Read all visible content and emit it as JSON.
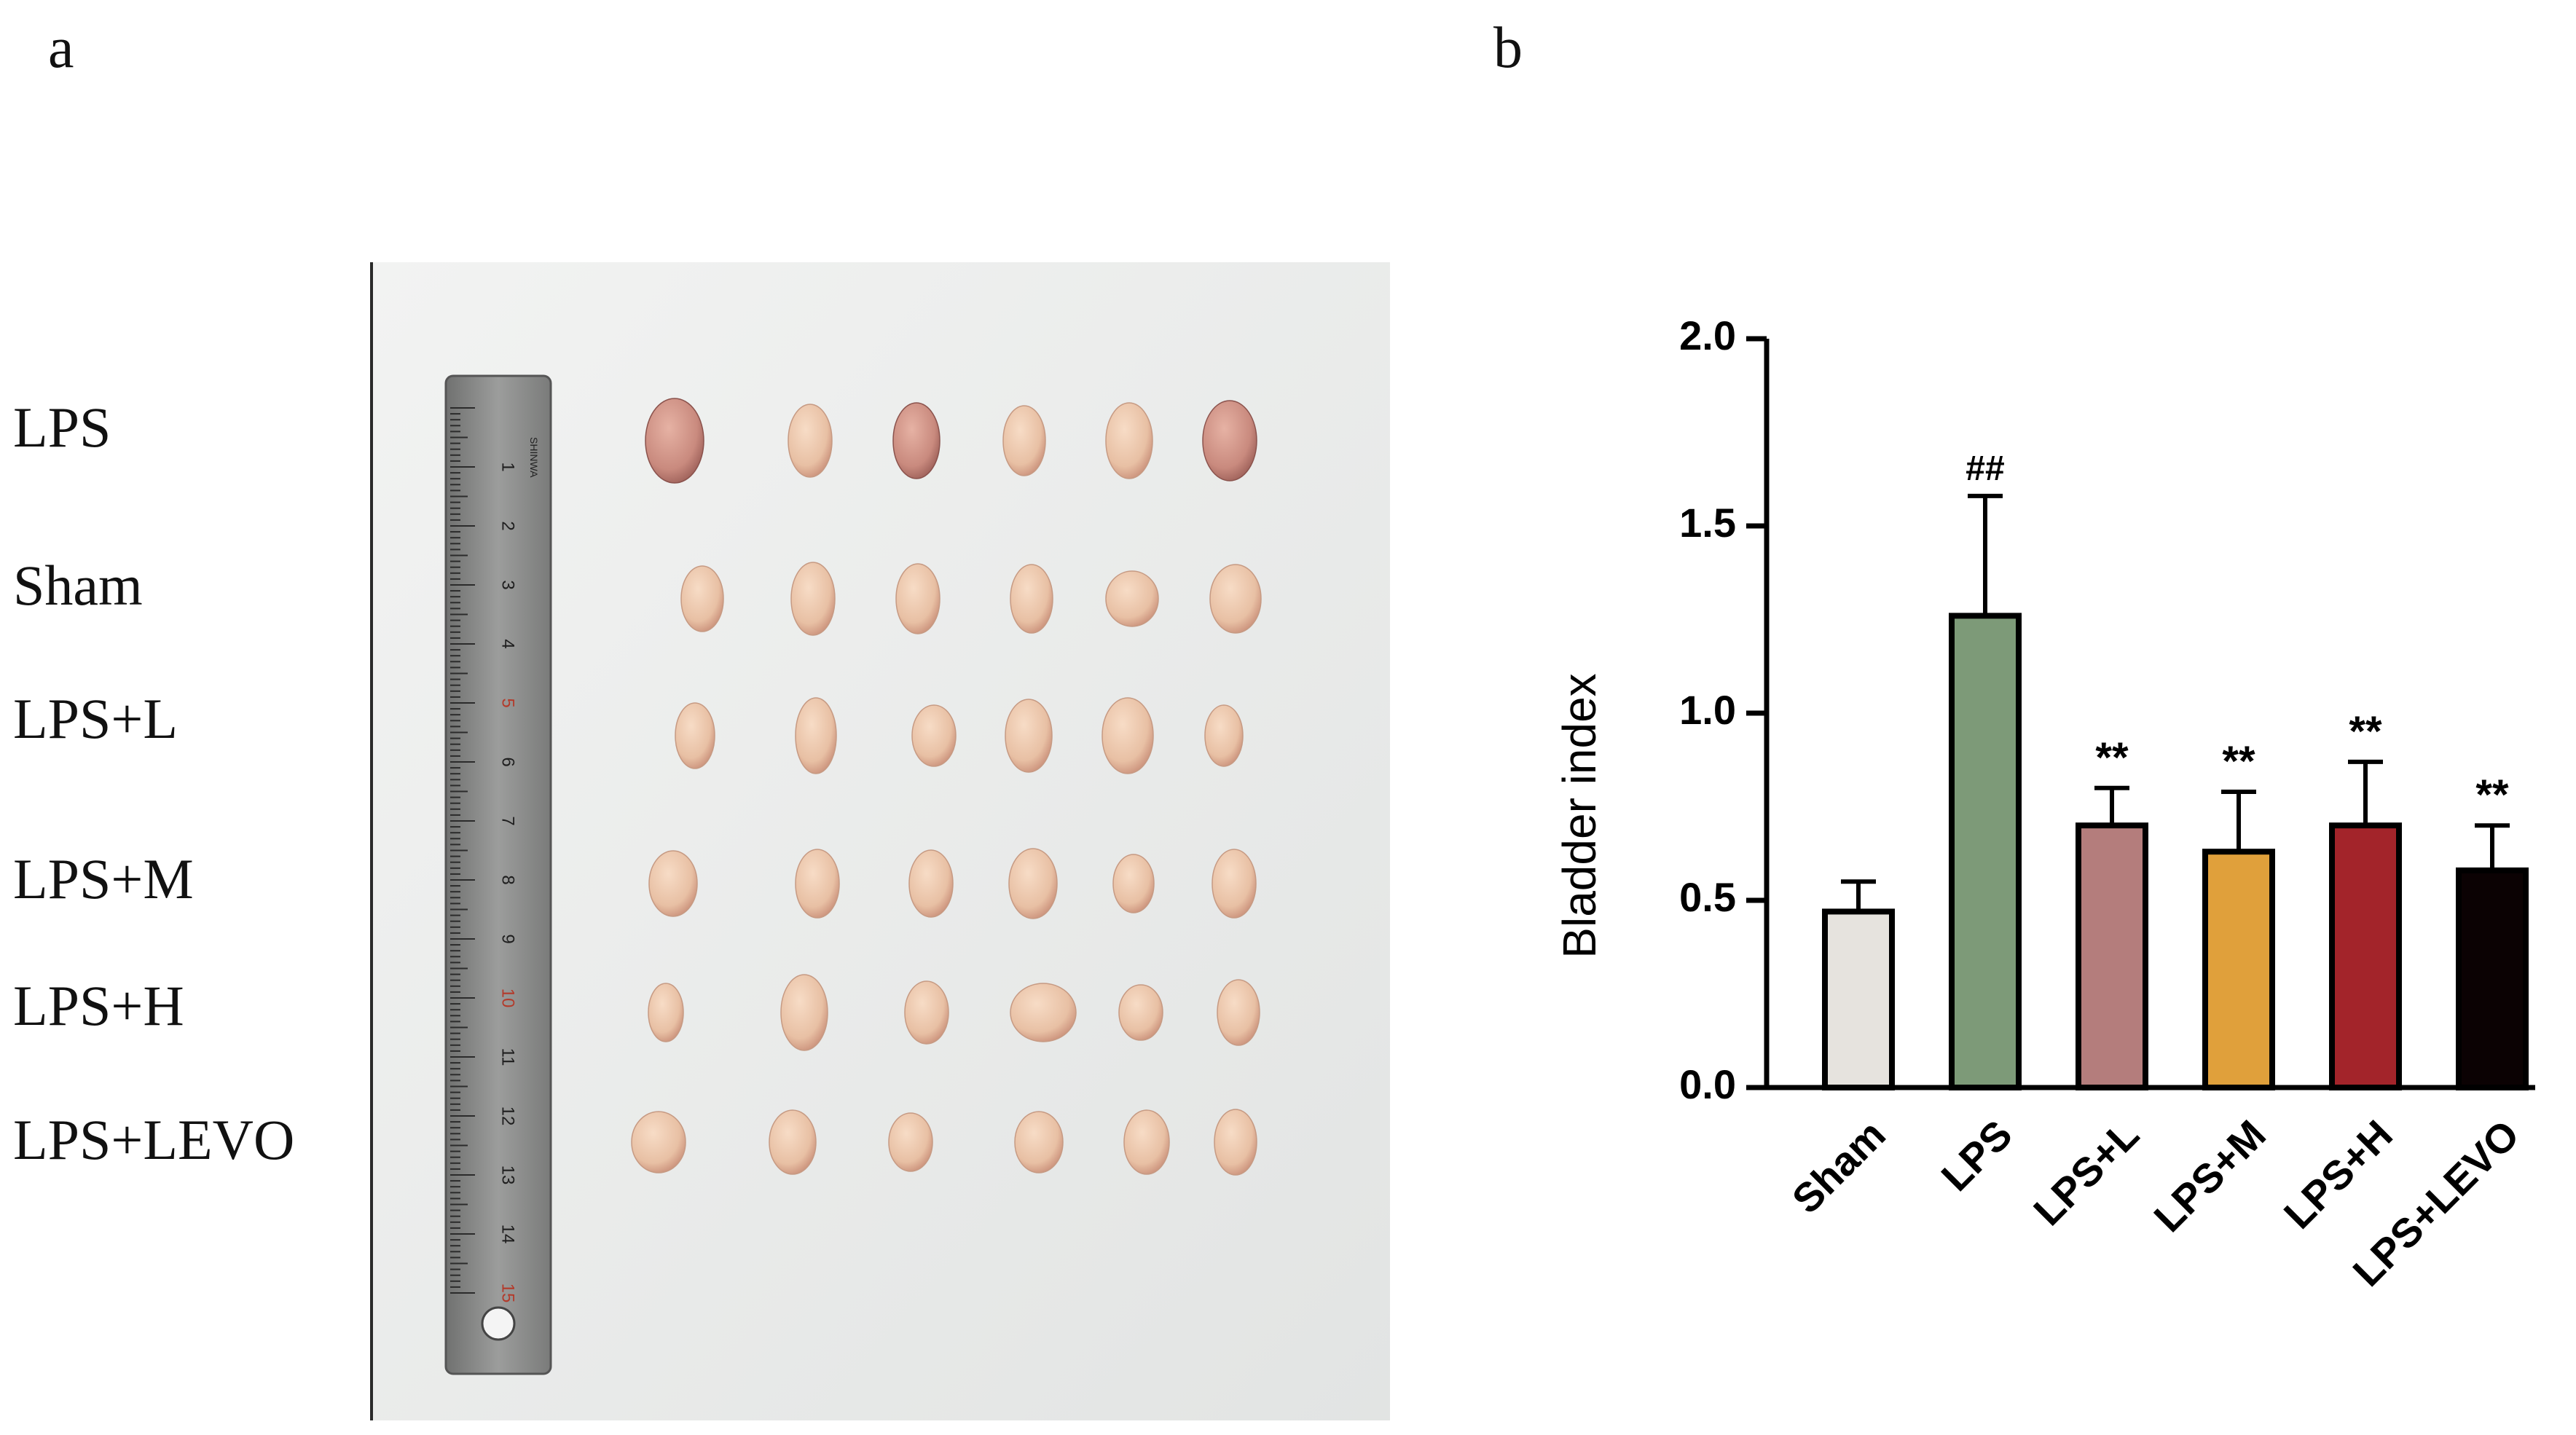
{
  "panels": {
    "a": "a",
    "b": "b"
  },
  "photo_panel": {
    "row_labels": [
      "LPS",
      "Sham",
      "LPS+L",
      "LPS+M",
      "LPS+H",
      "LPS+LEVO"
    ],
    "ruler_numbers": [
      "1",
      "2",
      "3",
      "4",
      "5",
      "6",
      "7",
      "8",
      "9",
      "10",
      "11",
      "12",
      "13",
      "14",
      "15"
    ],
    "ruler_brand": "SHINWA",
    "colors": {
      "background": "#eceeed",
      "tissue": "#ebc7ad",
      "tissue_inflamed": "#cf9486",
      "ruler": "#8c8d8c"
    }
  },
  "chart_data": {
    "type": "bar",
    "categories": [
      "Sham",
      "LPS",
      "LPS+L",
      "LPS+M",
      "LPS+H",
      "LPS+LEVO"
    ],
    "values": [
      0.47,
      1.26,
      0.7,
      0.63,
      0.7,
      0.58
    ],
    "errors": [
      0.08,
      0.32,
      0.1,
      0.16,
      0.17,
      0.12
    ],
    "annotations": [
      "",
      "##",
      "**",
      "**",
      "**",
      "**"
    ],
    "colors": [
      "#e6e3de",
      "#7d9a78",
      "#b47d7c",
      "#e0a03b",
      "#a3242a",
      "#0b0203"
    ],
    "ylabel": "Bladder index",
    "ylim": [
      0,
      2.0
    ],
    "yticks": [
      "0.0",
      "0.5",
      "1.0",
      "1.5",
      "2.0"
    ],
    "grid": false
  }
}
